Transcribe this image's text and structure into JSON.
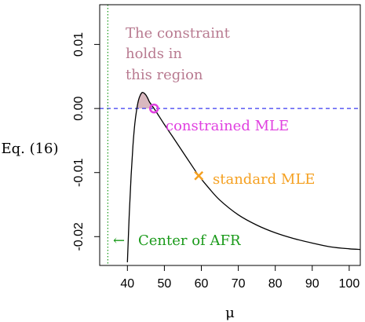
{
  "chart_data": {
    "type": "line",
    "xlabel": "μ",
    "ylabel": "Eq. (16)",
    "xlim": [
      32.5,
      103
    ],
    "ylim": [
      -0.0245,
      0.0162
    ],
    "xticks": [
      40,
      50,
      60,
      70,
      80,
      90,
      100
    ],
    "yticks": [
      -0.02,
      -0.01,
      0.0,
      0.01
    ],
    "ytick_labels": [
      "-0.02",
      "-0.01",
      "0.00",
      "0.01"
    ],
    "grid": false,
    "series": [
      {
        "x": [
          40.0,
          40.5,
          41.0,
          41.5,
          42.0,
          42.5,
          43.0,
          43.5,
          44.0,
          44.5,
          45.0,
          45.5,
          46.0,
          47.2,
          48.0,
          50.0,
          52.0,
          55.0,
          58.0,
          59.3,
          62.0,
          65.0,
          70.0,
          75.0,
          80.0,
          85.0,
          90.0,
          95.0,
          100.0,
          103.0
        ],
        "y": [
          -0.024,
          -0.0165,
          -0.0105,
          -0.0058,
          -0.0024,
          -0.0002,
          0.0013,
          0.0021,
          0.0025,
          0.0024,
          0.0021,
          0.0016,
          0.001,
          0.0,
          -0.0007,
          -0.0025,
          -0.0042,
          -0.0068,
          -0.0094,
          -0.0105,
          -0.0124,
          -0.0143,
          -0.0166,
          -0.0182,
          -0.0194,
          -0.0203,
          -0.021,
          -0.0216,
          -0.0219,
          -0.022
        ],
        "color": "#000000"
      }
    ],
    "reference_lines": {
      "horizontal": {
        "y": 0.0,
        "style": "dashed",
        "color": "#3a3af0"
      },
      "vertical": {
        "x": 34.7,
        "style": "dotted",
        "color": "#1a9a1a"
      }
    },
    "shaded_region": {
      "x_from": 42.6,
      "x_to": 47.2,
      "color": "#d9b8bf"
    },
    "markers": [
      {
        "name": "constrained MLE",
        "x": 47.2,
        "y": 0.0,
        "shape": "circle",
        "color": "#e040e0"
      },
      {
        "name": "standard MLE",
        "x": 59.3,
        "y": -0.0105,
        "shape": "cross",
        "color": "#f5a020"
      }
    ],
    "annotations": {
      "region_text": [
        "The constraint",
        "holds in",
        "this region"
      ],
      "region_color": "#b87a90",
      "constrained_mle_label": "constrained MLE",
      "constrained_mle_color": "#e040e0",
      "standard_mle_label": "standard MLE",
      "standard_mle_color": "#f5a020",
      "afr_label": "Center of AFR",
      "afr_arrow": "←",
      "afr_color": "#1a9a1a"
    }
  }
}
